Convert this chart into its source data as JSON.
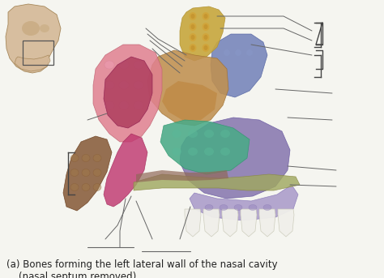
{
  "title": "(a) Bones forming the left lateral wall of the nasal cavity\n    (nasal septum removed)",
  "bg_color": "#f5f5f0",
  "title_fontsize": 8.5,
  "title_color": "#222222",
  "fig_width": 4.74,
  "fig_height": 3.43,
  "dpi": 100,
  "colors": {
    "skull": "#d4b896",
    "skull_edge": "#a08050",
    "yellow_bone": "#c8a840",
    "yellow_bone_dark": "#b09030",
    "tan_bone": "#c09050",
    "blue_bone": "#7080b8",
    "blue_bone_dark": "#5060a0",
    "pink_outer": "#e08090",
    "pink_inner": "#b04060",
    "magenta": "#c03870",
    "green_bone": "#4aaa88",
    "purple_large": "#8878b0",
    "purple_light": "#a898c8",
    "olive_strip": "#a0a860",
    "brown_tip": "#8B6040",
    "red_strip": "#b05050",
    "line_color": "#666666",
    "bracket_color": "#444444",
    "tooth_color": "#f0efea",
    "tooth_edge": "#ccccbb"
  }
}
